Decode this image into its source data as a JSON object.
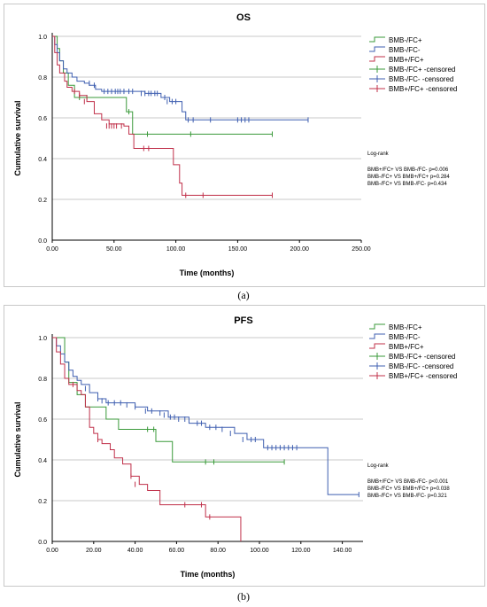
{
  "panels": [
    {
      "caption": "(a)",
      "chart_data": {
        "type": "line",
        "title": "OS",
        "xlabel": "Time (months)",
        "ylabel": "Cumulative survival",
        "xlim": [
          0,
          250
        ],
        "ylim": [
          0,
          1.0
        ],
        "xticks": [
          "0.00",
          "50.00",
          "100.00",
          "150.00",
          "200.00",
          "250.00"
        ],
        "yticks": [
          "0.0",
          "0.2",
          "0.4",
          "0.6",
          "0.8",
          "1.0"
        ],
        "grid": "horizontal",
        "legend": [
          "BMB-/FC+",
          "BMB-/FC-",
          "BMB+/FC+",
          "BMB-/FC+ -censored",
          "BMB-/FC- -censored",
          "BMB+/FC+ -censored"
        ],
        "legend_position": "top-right",
        "annotation_title": "Log-rank",
        "annotations": [
          "BMB+/FC+ VS BMB-/FC- p=0.006",
          "BMB-/FC+ VS BMB+/FC+ p=0.284",
          "BMB-/FC+ VS BMB-/FC- p=0.434"
        ],
        "series": [
          {
            "color": "#3a9a3a",
            "steps": [
              [
                0,
                1.0
              ],
              [
                4,
                0.94
              ],
              [
                6,
                0.88
              ],
              [
                9,
                0.82
              ],
              [
                13,
                0.76
              ],
              [
                18,
                0.7
              ],
              [
                60,
                0.63
              ],
              [
                65,
                0.52
              ],
              [
                178,
                0.52
              ]
            ],
            "censored": [
              [
                22,
                0.7
              ],
              [
                28,
                0.7
              ],
              [
                62,
                0.63
              ],
              [
                77,
                0.52
              ],
              [
                112,
                0.52
              ],
              [
                178,
                0.52
              ]
            ]
          },
          {
            "color": "#3f5fb0",
            "steps": [
              [
                0,
                1.0
              ],
              [
                2,
                0.96
              ],
              [
                4,
                0.92
              ],
              [
                6,
                0.88
              ],
              [
                9,
                0.84
              ],
              [
                12,
                0.82
              ],
              [
                16,
                0.8
              ],
              [
                20,
                0.78
              ],
              [
                26,
                0.77
              ],
              [
                30,
                0.76
              ],
              [
                35,
                0.74
              ],
              [
                40,
                0.73
              ],
              [
                75,
                0.72
              ],
              [
                88,
                0.7
              ],
              [
                95,
                0.68
              ],
              [
                105,
                0.63
              ],
              [
                108,
                0.59
              ],
              [
                207,
                0.59
              ]
            ],
            "censored": [
              [
                30,
                0.77
              ],
              [
                34,
                0.76
              ],
              [
                42,
                0.73
              ],
              [
                45,
                0.73
              ],
              [
                48,
                0.73
              ],
              [
                51,
                0.73
              ],
              [
                53,
                0.73
              ],
              [
                55,
                0.73
              ],
              [
                58,
                0.73
              ],
              [
                62,
                0.73
              ],
              [
                65,
                0.73
              ],
              [
                72,
                0.72
              ],
              [
                75,
                0.72
              ],
              [
                78,
                0.72
              ],
              [
                80,
                0.72
              ],
              [
                83,
                0.72
              ],
              [
                85,
                0.72
              ],
              [
                91,
                0.7
              ],
              [
                93,
                0.68
              ],
              [
                97,
                0.68
              ],
              [
                100,
                0.68
              ],
              [
                110,
                0.59
              ],
              [
                114,
                0.59
              ],
              [
                128,
                0.59
              ],
              [
                150,
                0.59
              ],
              [
                153,
                0.59
              ],
              [
                156,
                0.59
              ],
              [
                159,
                0.59
              ],
              [
                207,
                0.59
              ]
            ]
          },
          {
            "color": "#c0304a",
            "steps": [
              [
                0,
                1.0
              ],
              [
                2,
                0.92
              ],
              [
                4,
                0.86
              ],
              [
                6,
                0.82
              ],
              [
                10,
                0.78
              ],
              [
                12,
                0.75
              ],
              [
                16,
                0.73
              ],
              [
                22,
                0.71
              ],
              [
                28,
                0.68
              ],
              [
                34,
                0.62
              ],
              [
                40,
                0.59
              ],
              [
                46,
                0.57
              ],
              [
                58,
                0.56
              ],
              [
                62,
                0.52
              ],
              [
                66,
                0.45
              ],
              [
                98,
                0.37
              ],
              [
                103,
                0.28
              ],
              [
                105,
                0.22
              ],
              [
                178,
                0.22
              ]
            ],
            "censored": [
              [
                18,
                0.73
              ],
              [
                22,
                0.71
              ],
              [
                26,
                0.68
              ],
              [
                44,
                0.56
              ],
              [
                46,
                0.56
              ],
              [
                48,
                0.56
              ],
              [
                50,
                0.56
              ],
              [
                52,
                0.56
              ],
              [
                56,
                0.56
              ],
              [
                74,
                0.45
              ],
              [
                78,
                0.45
              ],
              [
                108,
                0.22
              ],
              [
                122,
                0.22
              ],
              [
                178,
                0.22
              ]
            ]
          }
        ]
      }
    },
    {
      "caption": "(b)",
      "chart_data": {
        "type": "line",
        "title": "PFS",
        "xlabel": "Time (months)",
        "ylabel": "Cumulative survival",
        "xlim": [
          0,
          150
        ],
        "ylim": [
          0,
          1.0
        ],
        "xticks": [
          "0.00",
          "20.00",
          "40.00",
          "60.00",
          "80.00",
          "100.00",
          "120.00",
          "140.00"
        ],
        "yticks": [
          "0.0",
          "0.2",
          "0.4",
          "0.6",
          "0.8",
          "1.0"
        ],
        "grid": "horizontal",
        "legend": [
          "BMB-/FC+",
          "BMB-/FC-",
          "BMB+/FC+",
          "BMB-/FC+ -censored",
          "BMB-/FC- -censored",
          "BMB+/FC+ -censored"
        ],
        "legend_position": "top-right",
        "annotation_title": "Log-rank",
        "annotations": [
          "BMB+/FC+ VS BMB-/FC- p<0.001",
          "BMB-/FC+ VS BMB+/FC+ p=0.038",
          "BMB-/FC+ VS BMB-/FC- p=0.321"
        ],
        "series": [
          {
            "color": "#3a9a3a",
            "steps": [
              [
                0,
                1.0
              ],
              [
                6,
                0.88
              ],
              [
                8,
                0.78
              ],
              [
                12,
                0.72
              ],
              [
                16,
                0.66
              ],
              [
                26,
                0.6
              ],
              [
                32,
                0.55
              ],
              [
                50,
                0.49
              ],
              [
                58,
                0.39
              ],
              [
                112,
                0.39
              ]
            ],
            "censored": [
              [
                46,
                0.55
              ],
              [
                49,
                0.55
              ],
              [
                74,
                0.39
              ],
              [
                78,
                0.39
              ],
              [
                112,
                0.39
              ]
            ]
          },
          {
            "color": "#3f5fb0",
            "steps": [
              [
                0,
                1.0
              ],
              [
                2,
                0.96
              ],
              [
                4,
                0.92
              ],
              [
                6,
                0.88
              ],
              [
                8,
                0.84
              ],
              [
                10,
                0.81
              ],
              [
                12,
                0.79
              ],
              [
                14,
                0.77
              ],
              [
                18,
                0.73
              ],
              [
                22,
                0.7
              ],
              [
                26,
                0.68
              ],
              [
                40,
                0.66
              ],
              [
                46,
                0.64
              ],
              [
                56,
                0.61
              ],
              [
                66,
                0.58
              ],
              [
                74,
                0.56
              ],
              [
                88,
                0.53
              ],
              [
                94,
                0.5
              ],
              [
                102,
                0.46
              ],
              [
                133,
                0.23
              ],
              [
                148,
                0.23
              ]
            ],
            "censored": [
              [
                16,
                0.75
              ],
              [
                22,
                0.7
              ],
              [
                24,
                0.69
              ],
              [
                27,
                0.68
              ],
              [
                30,
                0.68
              ],
              [
                33,
                0.68
              ],
              [
                36,
                0.67
              ],
              [
                40,
                0.66
              ],
              [
                45,
                0.64
              ],
              [
                48,
                0.64
              ],
              [
                52,
                0.63
              ],
              [
                54,
                0.62
              ],
              [
                57,
                0.61
              ],
              [
                59,
                0.61
              ],
              [
                61,
                0.6
              ],
              [
                64,
                0.6
              ],
              [
                70,
                0.58
              ],
              [
                72,
                0.58
              ],
              [
                76,
                0.56
              ],
              [
                79,
                0.56
              ],
              [
                82,
                0.55
              ],
              [
                86,
                0.53
              ],
              [
                92,
                0.5
              ],
              [
                96,
                0.5
              ],
              [
                98,
                0.5
              ],
              [
                104,
                0.46
              ],
              [
                106,
                0.46
              ],
              [
                108,
                0.46
              ],
              [
                110,
                0.46
              ],
              [
                112,
                0.46
              ],
              [
                114,
                0.46
              ],
              [
                116,
                0.46
              ],
              [
                118,
                0.46
              ],
              [
                148,
                0.23
              ]
            ]
          },
          {
            "color": "#c0304a",
            "steps": [
              [
                0,
                1.0
              ],
              [
                2,
                0.93
              ],
              [
                4,
                0.87
              ],
              [
                6,
                0.8
              ],
              [
                8,
                0.77
              ],
              [
                12,
                0.74
              ],
              [
                14,
                0.72
              ],
              [
                16,
                0.66
              ],
              [
                18,
                0.56
              ],
              [
                20,
                0.53
              ],
              [
                22,
                0.5
              ],
              [
                24,
                0.48
              ],
              [
                28,
                0.45
              ],
              [
                30,
                0.41
              ],
              [
                34,
                0.38
              ],
              [
                38,
                0.32
              ],
              [
                42,
                0.28
              ],
              [
                46,
                0.25
              ],
              [
                52,
                0.18
              ],
              [
                74,
                0.12
              ],
              [
                90,
                0.12
              ],
              [
                91,
                0.0
              ]
            ],
            "censored": [
              [
                10,
                0.77
              ],
              [
                22,
                0.5
              ],
              [
                38,
                0.32
              ],
              [
                40,
                0.28
              ],
              [
                64,
                0.18
              ],
              [
                72,
                0.18
              ],
              [
                76,
                0.12
              ]
            ]
          }
        ]
      }
    }
  ]
}
